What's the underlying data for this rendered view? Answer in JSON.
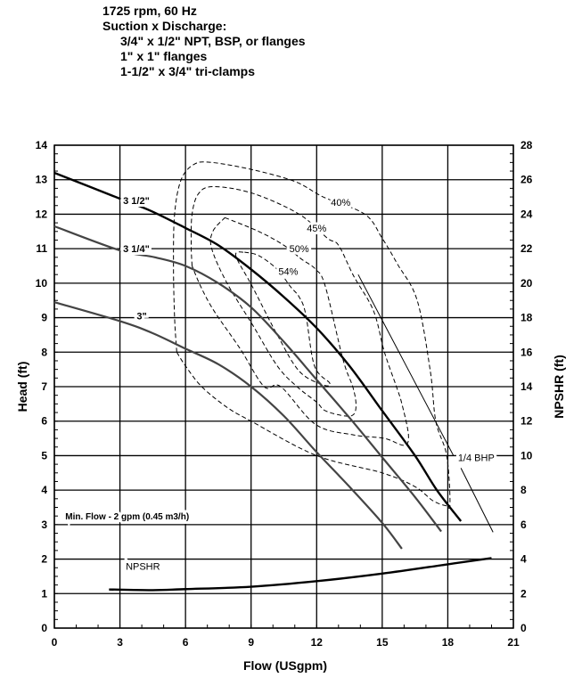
{
  "header": {
    "lines": [
      "1725 rpm, 60 Hz",
      "Suction x Discharge:",
      "3/4\" x 1/2\" NPT, BSP, or flanges",
      "1\" x 1\" flanges",
      "1-1/2\" x 3/4\" tri-clamps"
    ]
  },
  "chart_data": {
    "type": "line",
    "xlabel": "Flow (USgpm)",
    "ylabel": "Head (ft)",
    "y2label": "NPSHR (ft)",
    "xlim": [
      0,
      21
    ],
    "ylim": [
      0,
      14
    ],
    "y2lim": [
      0,
      28
    ],
    "xticks": [
      "0",
      "3",
      "6",
      "9",
      "12",
      "15",
      "18",
      "21"
    ],
    "yticks": [
      "0",
      "1",
      "2",
      "3",
      "4",
      "5",
      "6",
      "7",
      "8",
      "9",
      "10",
      "11",
      "12",
      "13",
      "14"
    ],
    "y2ticks": [
      "0",
      "2",
      "4",
      "6",
      "8",
      "10",
      "12",
      "14",
      "16",
      "18",
      "20",
      "22",
      "24",
      "26",
      "28"
    ],
    "grid": true,
    "annotation": "Min. Flow - 2 gpm (0.45 m3/h)",
    "series": [
      {
        "name": "3 1/2\"",
        "axis": "head",
        "style": "bold",
        "label_at": [
          3.75,
          12.4
        ],
        "points": [
          [
            0,
            13.2
          ],
          [
            3,
            12.45
          ],
          [
            4.4,
            12.1
          ],
          [
            6,
            11.6
          ],
          [
            7.5,
            11.1
          ],
          [
            9,
            10.4
          ],
          [
            10.5,
            9.6
          ],
          [
            12,
            8.7
          ],
          [
            13.5,
            7.6
          ],
          [
            15,
            6.3
          ],
          [
            16.5,
            5.0
          ],
          [
            17.5,
            4.0
          ],
          [
            18.6,
            3.1
          ]
        ]
      },
      {
        "name": "3 1/4\"",
        "axis": "head",
        "style": "medium",
        "label_at": [
          3.75,
          11.0
        ],
        "points": [
          [
            0,
            11.65
          ],
          [
            3,
            10.95
          ],
          [
            4.6,
            10.75
          ],
          [
            6,
            10.5
          ],
          [
            7.5,
            10.0
          ],
          [
            9,
            9.3
          ],
          [
            10.5,
            8.3
          ],
          [
            12,
            7.2
          ],
          [
            13.5,
            6.1
          ],
          [
            15,
            4.95
          ],
          [
            16.5,
            3.8
          ],
          [
            17.7,
            2.8
          ]
        ]
      },
      {
        "name": "3\"",
        "axis": "head",
        "style": "medium",
        "label_at": [
          4.0,
          9.05
        ],
        "points": [
          [
            0,
            9.45
          ],
          [
            3,
            8.9
          ],
          [
            4.5,
            8.55
          ],
          [
            6,
            8.1
          ],
          [
            7.5,
            7.65
          ],
          [
            9,
            7.0
          ],
          [
            10.5,
            6.15
          ],
          [
            12,
            5.1
          ],
          [
            13.5,
            4.1
          ],
          [
            15,
            3.05
          ],
          [
            15.9,
            2.3
          ]
        ]
      },
      {
        "name": "NPSHR",
        "axis": "npshr",
        "style": "bold",
        "label_at": [
          4.05,
          3.6
        ],
        "points": [
          [
            2.5,
            2.24
          ],
          [
            4.5,
            2.2
          ],
          [
            6,
            2.26
          ],
          [
            9,
            2.4
          ],
          [
            12,
            2.72
          ],
          [
            15,
            3.16
          ],
          [
            18,
            3.7
          ],
          [
            20,
            4.06
          ]
        ]
      },
      {
        "name": "1/4 BHP",
        "axis": "head",
        "style": "thin",
        "label_at": [
          19.3,
          4.95
        ],
        "points": [
          [
            13.9,
            10.25
          ],
          [
            18.26,
            5.0
          ]
        ],
        "points2": [
          [
            18.6,
            4.64
          ],
          [
            20.07,
            2.78
          ]
        ]
      }
    ],
    "efficiency_contours": [
      {
        "name": "40%",
        "label_at": [
          13.1,
          12.35
        ],
        "points": [
          [
            5.6,
            8.0
          ],
          [
            5.5,
            9.0
          ],
          [
            5.45,
            10.5
          ],
          [
            5.5,
            12.0
          ],
          [
            5.8,
            13.0
          ],
          [
            6.4,
            13.45
          ],
          [
            7.2,
            13.5
          ],
          [
            9,
            13.3
          ],
          [
            11,
            12.95
          ],
          [
            12.3,
            12.5
          ],
          [
            14.2,
            12.0
          ],
          [
            15.0,
            11.3
          ],
          [
            15.7,
            10.55
          ],
          [
            16.6,
            9.5
          ],
          [
            17.2,
            7.45
          ],
          [
            17.45,
            6.0
          ],
          [
            17.95,
            5.0
          ],
          [
            18.1,
            3.6
          ],
          [
            17.9,
            3.55
          ],
          [
            17.3,
            3.7
          ],
          [
            16.5,
            4.1
          ],
          [
            15,
            4.5
          ],
          [
            12,
            5.0
          ],
          [
            9,
            6.0
          ],
          [
            7.9,
            6.4
          ],
          [
            6.74,
            7.0
          ],
          [
            6.0,
            7.6
          ],
          [
            5.6,
            8.0
          ]
        ]
      },
      {
        "name": "45%",
        "label_at": [
          12.0,
          11.6
        ],
        "points": [
          [
            6.3,
            10.5
          ],
          [
            6.26,
            11.1
          ],
          [
            6.3,
            12.0
          ],
          [
            6.6,
            12.6
          ],
          [
            7.3,
            12.8
          ],
          [
            9.1,
            12.6
          ],
          [
            11.2,
            12.0
          ],
          [
            12.5,
            11.3
          ],
          [
            13.0,
            11.1
          ],
          [
            13.7,
            10.2
          ],
          [
            14.6,
            9.2
          ],
          [
            15.1,
            8.0
          ],
          [
            15.65,
            7.0
          ],
          [
            15.9,
            6.5
          ],
          [
            16.2,
            5.6
          ],
          [
            16.0,
            5.3
          ],
          [
            15.1,
            5.5
          ],
          [
            13.7,
            5.6
          ],
          [
            11.96,
            5.9
          ],
          [
            10.36,
            7.0
          ],
          [
            9.6,
            7.0
          ],
          [
            8.5,
            8.1
          ],
          [
            7.3,
            9.2
          ],
          [
            6.7,
            9.9
          ],
          [
            6.3,
            10.5
          ]
        ]
      },
      {
        "name": "50%",
        "label_at": [
          11.2,
          11.0
        ],
        "points": [
          [
            7.8,
            11.9
          ],
          [
            9.35,
            11.5
          ],
          [
            10.5,
            11.1
          ],
          [
            11.3,
            10.7
          ],
          [
            11.96,
            10.4
          ],
          [
            12.4,
            9.9
          ],
          [
            13.2,
            7.8
          ],
          [
            13.65,
            7.0
          ],
          [
            13.8,
            6.5
          ],
          [
            13.7,
            6.2
          ],
          [
            13.3,
            6.15
          ],
          [
            12.4,
            6.3
          ],
          [
            12.0,
            6.55
          ],
          [
            11.1,
            7.0
          ],
          [
            10.2,
            7.6
          ],
          [
            9.06,
            8.8
          ],
          [
            7.9,
            10.0
          ],
          [
            7.2,
            11.0
          ],
          [
            7.25,
            11.5
          ],
          [
            7.8,
            11.9
          ]
        ]
      },
      {
        "name": "54%",
        "label_at": [
          10.7,
          10.35
        ],
        "points": [
          [
            8.7,
            10.9
          ],
          [
            9.35,
            10.8
          ],
          [
            10.2,
            10.4
          ],
          [
            10.8,
            9.9
          ],
          [
            11.2,
            9.6
          ],
          [
            11.5,
            9.1
          ],
          [
            11.9,
            7.6
          ],
          [
            12.6,
            7.1
          ],
          [
            12.25,
            7.06
          ],
          [
            11.2,
            7.45
          ],
          [
            10.2,
            8.5
          ],
          [
            9.06,
            9.9
          ],
          [
            8.3,
            10.8
          ],
          [
            8.7,
            10.9
          ]
        ]
      }
    ]
  }
}
